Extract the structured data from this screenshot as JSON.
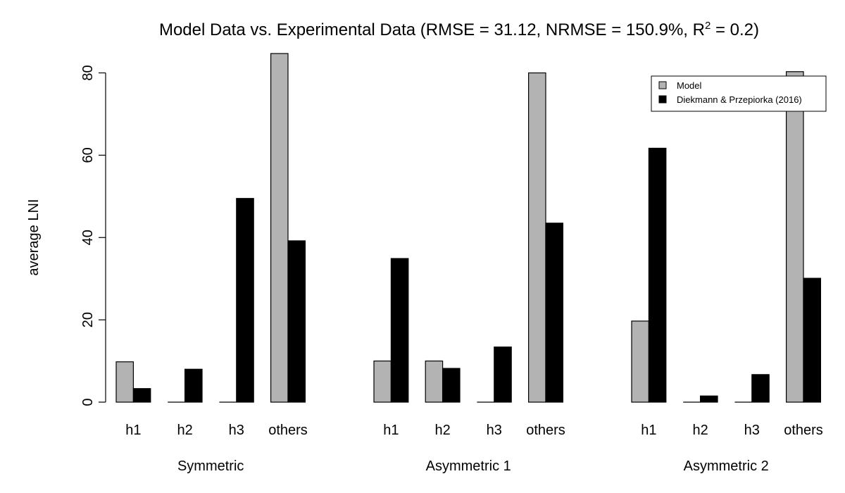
{
  "chart_data": {
    "type": "bar",
    "title_main": "Model Data vs. Experimental Data (RMSE = 31.12, NRMSE = 150.9%, R",
    "title_sup": "2",
    "title_tail": " = 0.2)",
    "ylabel": "average LNI",
    "xlabel": "",
    "ylim": [
      0,
      80
    ],
    "yticks": [
      "0",
      "20",
      "40",
      "60",
      "80"
    ],
    "categories": [
      "h1",
      "h2",
      "h3",
      "others"
    ],
    "groups": [
      "Symmetric",
      "Asymmetric 1",
      "Asymmetric 2"
    ],
    "series": [
      {
        "name": "Model",
        "color": "#b3b3b3",
        "values": [
          [
            9.8,
            0,
            0,
            85
          ],
          [
            10.0,
            10.0,
            0,
            80
          ],
          [
            19.7,
            0,
            0,
            80.3
          ]
        ]
      },
      {
        "name": "Diekmann & Przepiorka (2016)",
        "color": "#000000",
        "values": [
          [
            3.3,
            8.0,
            49.5,
            39.2
          ],
          [
            34.9,
            8.2,
            13.4,
            43.5
          ],
          [
            61.7,
            1.5,
            6.7,
            30.1
          ]
        ]
      }
    ],
    "legend_position": "top-right",
    "grid": false
  }
}
